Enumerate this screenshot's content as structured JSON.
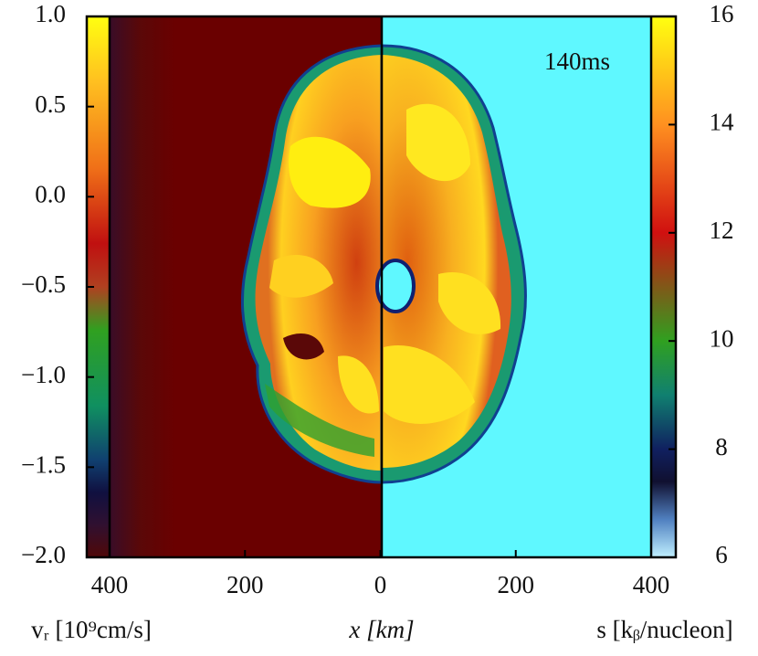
{
  "chart_data": {
    "type": "image",
    "annotation": "140ms",
    "xlabel": "x [km]",
    "left_label": "vᵣ [10⁹cm/s]",
    "right_label": "s [kᵦ/nucleon]",
    "xlim": [
      -400,
      400
    ],
    "xticks": [
      {
        "value": -400,
        "label": "400"
      },
      {
        "value": -200,
        "label": "200"
      },
      0,
      200,
      400
    ],
    "ylim": [
      -2,
      1
    ],
    "yticks": [
      {
        "value": 1,
        "label": "1.0"
      },
      0.5,
      {
        "value": 0,
        "label": "0.0"
      },
      {
        "value": -0.5,
        "label": "−0.5"
      },
      {
        "value": -1,
        "label": "−1.0"
      },
      {
        "value": -1.5,
        "label": "−1.5"
      },
      {
        "value": -2,
        "label": "−2.0"
      }
    ],
    "y2lim": [
      6,
      16
    ],
    "y2ticks": [
      6,
      8,
      10,
      12,
      14,
      16
    ]
  }
}
